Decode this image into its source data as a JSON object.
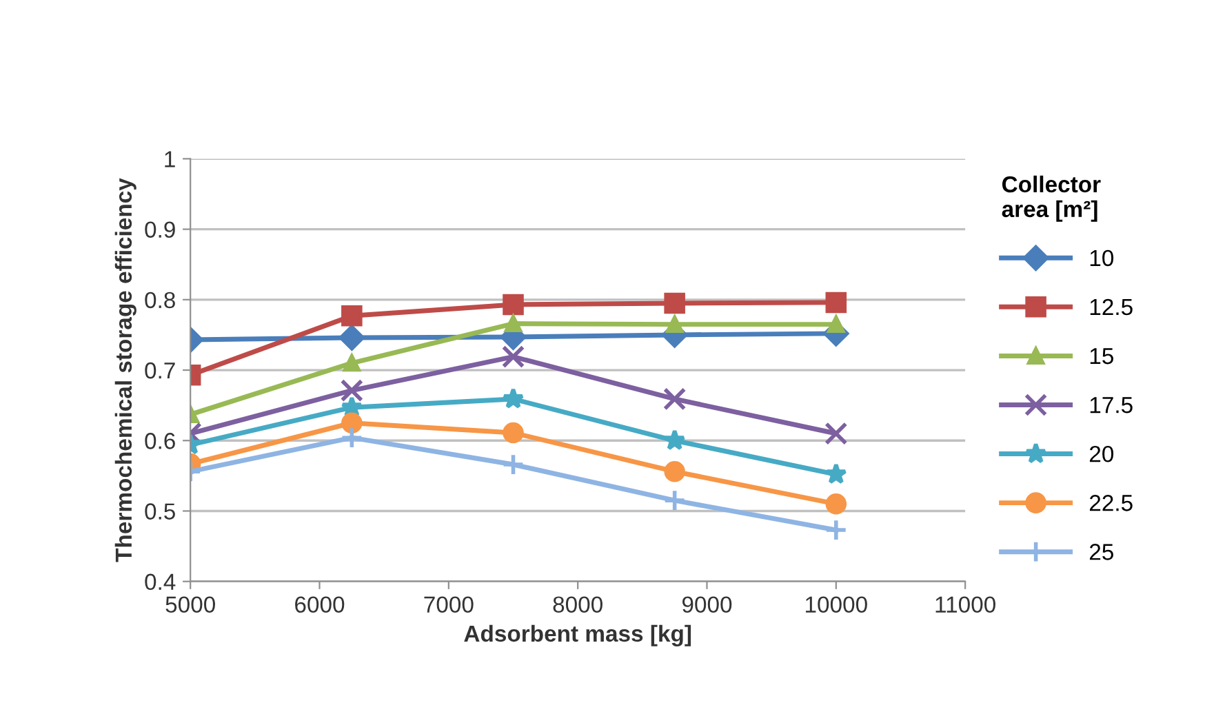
{
  "chart_data": {
    "type": "line",
    "xlabel": "Adsorbent mass [kg]",
    "ylabel": "Thermochemical storage efficiency",
    "legend_title": "Collector area [m²]",
    "x": [
      5000,
      6250,
      7500,
      8750,
      10000
    ],
    "series": [
      {
        "name": "10",
        "color": "#4a7ebb",
        "marker": "diamond",
        "values": [
          0.743,
          0.746,
          0.747,
          0.75,
          0.752
        ]
      },
      {
        "name": "12.5",
        "color": "#be4b48",
        "marker": "square",
        "values": [
          0.693,
          0.777,
          0.793,
          0.795,
          0.796
        ]
      },
      {
        "name": "15",
        "color": "#98b954",
        "marker": "triangle",
        "values": [
          0.637,
          0.71,
          0.766,
          0.765,
          0.765
        ]
      },
      {
        "name": "17.5",
        "color": "#7d60a0",
        "marker": "cross",
        "values": [
          0.61,
          0.671,
          0.719,
          0.659,
          0.61
        ]
      },
      {
        "name": "20",
        "color": "#46aac5",
        "marker": "star",
        "values": [
          0.594,
          0.647,
          0.659,
          0.6,
          0.552
        ]
      },
      {
        "name": "22.5",
        "color": "#f79646",
        "marker": "circle",
        "values": [
          0.567,
          0.625,
          0.611,
          0.556,
          0.51
        ]
      },
      {
        "name": "25",
        "color": "#8eb4e3",
        "marker": "plus",
        "values": [
          0.556,
          0.604,
          0.566,
          0.515,
          0.473
        ]
      }
    ],
    "xlim": [
      5000,
      11000
    ],
    "xticks": [
      5000,
      6000,
      7000,
      8000,
      9000,
      10000,
      11000
    ],
    "ylim": [
      0.4,
      1
    ],
    "yticks": [
      0.4,
      0.5,
      0.6,
      0.7,
      0.8,
      0.9,
      1
    ],
    "grid": "y",
    "legend": "right",
    "line_style": "solid"
  }
}
